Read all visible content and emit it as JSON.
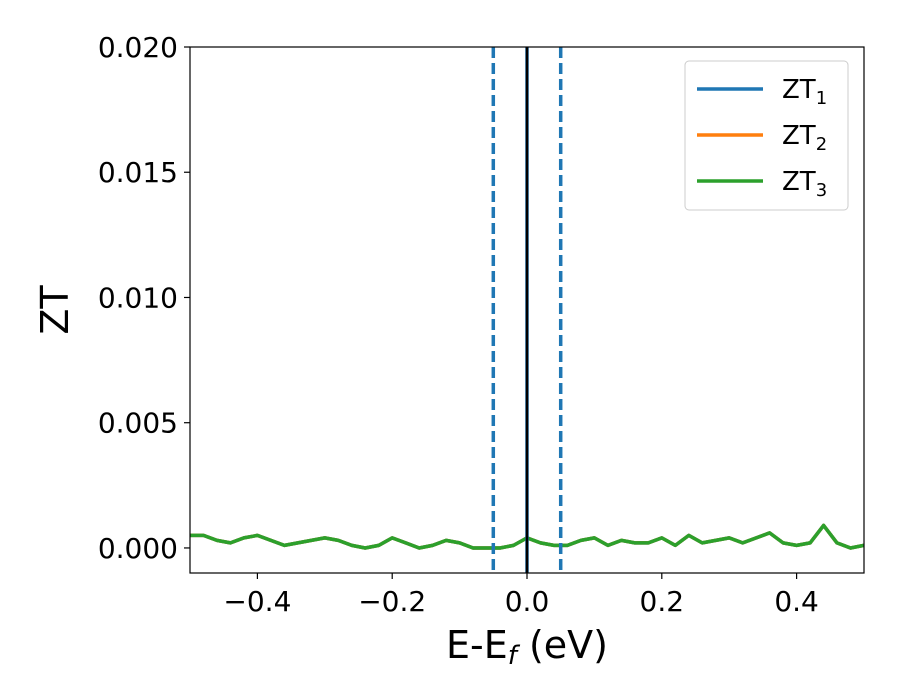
{
  "chart_data": {
    "type": "line",
    "title": "",
    "xlabel_main": "E-E",
    "xlabel_sub": "f",
    "xlabel_unit": " (eV)",
    "ylabel": "ZT",
    "xlim": [
      -0.5,
      0.5
    ],
    "ylim": [
      -0.001,
      0.02
    ],
    "xticks": [
      -0.4,
      -0.2,
      0.0,
      0.2,
      0.4
    ],
    "xtick_labels": [
      "−0.4",
      "−0.2",
      "0.0",
      "0.2",
      "0.4"
    ],
    "yticks": [
      0.0,
      0.005,
      0.01,
      0.015,
      0.02
    ],
    "ytick_labels": [
      "0.000",
      "0.005",
      "0.010",
      "0.015",
      "0.020"
    ],
    "grid": false,
    "legend_position": "top-right",
    "series": [
      {
        "name_main": "ZT",
        "name_sub": "1",
        "color": "#1f77b4",
        "x": [
          -0.5,
          -0.48,
          -0.46,
          -0.44,
          -0.42,
          -0.4,
          -0.38,
          -0.36,
          -0.34,
          -0.32,
          -0.3,
          -0.28,
          -0.26,
          -0.24,
          -0.22,
          -0.2,
          -0.18,
          -0.16,
          -0.14,
          -0.12,
          -0.1,
          -0.08,
          -0.06,
          -0.04,
          -0.02,
          0.0,
          0.02,
          0.04,
          0.06,
          0.08,
          0.1,
          0.12,
          0.14,
          0.16,
          0.18,
          0.2,
          0.22,
          0.24,
          0.26,
          0.28,
          0.3,
          0.32,
          0.34,
          0.36,
          0.38,
          0.4,
          0.42,
          0.44,
          0.46,
          0.48,
          0.5
        ],
        "y": [
          0.0005,
          0.0005,
          0.0003,
          0.0002,
          0.0004,
          0.0005,
          0.0003,
          0.0001,
          0.0002,
          0.0003,
          0.0004,
          0.0003,
          0.0001,
          0.0,
          0.0001,
          0.0004,
          0.0002,
          0.0,
          0.0001,
          0.0003,
          0.0002,
          0.0,
          0.0,
          0.0,
          0.0001,
          0.0004,
          0.0002,
          0.0001,
          0.0001,
          0.0003,
          0.0004,
          0.0001,
          0.0003,
          0.0002,
          0.0002,
          0.0004,
          0.0001,
          0.0005,
          0.0002,
          0.0003,
          0.0004,
          0.0002,
          0.0004,
          0.0006,
          0.0002,
          0.0001,
          0.0002,
          0.0009,
          0.0002,
          0.0,
          0.0001
        ]
      },
      {
        "name_main": "ZT",
        "name_sub": "2",
        "color": "#ff7f0e",
        "x": [
          -0.5,
          -0.48,
          -0.46,
          -0.44,
          -0.42,
          -0.4,
          -0.38,
          -0.36,
          -0.34,
          -0.32,
          -0.3,
          -0.28,
          -0.26,
          -0.24,
          -0.22,
          -0.2,
          -0.18,
          -0.16,
          -0.14,
          -0.12,
          -0.1,
          -0.08,
          -0.06,
          -0.04,
          -0.02,
          0.0,
          0.02,
          0.04,
          0.06,
          0.08,
          0.1,
          0.12,
          0.14,
          0.16,
          0.18,
          0.2,
          0.22,
          0.24,
          0.26,
          0.28,
          0.3,
          0.32,
          0.34,
          0.36,
          0.38,
          0.4,
          0.42,
          0.44,
          0.46,
          0.48,
          0.5
        ],
        "y": [
          0.0005,
          0.0005,
          0.0003,
          0.0002,
          0.0004,
          0.0005,
          0.0003,
          0.0001,
          0.0002,
          0.0003,
          0.0004,
          0.0003,
          0.0001,
          0.0,
          0.0001,
          0.0004,
          0.0002,
          0.0,
          0.0001,
          0.0003,
          0.0002,
          0.0,
          0.0,
          0.0,
          0.0001,
          0.0004,
          0.0002,
          0.0001,
          0.0001,
          0.0003,
          0.0004,
          0.0001,
          0.0003,
          0.0002,
          0.0002,
          0.0004,
          0.0001,
          0.0005,
          0.0002,
          0.0003,
          0.0004,
          0.0002,
          0.0004,
          0.0006,
          0.0002,
          0.0001,
          0.0002,
          0.0009,
          0.0002,
          0.0,
          0.0001
        ]
      },
      {
        "name_main": "ZT",
        "name_sub": "3",
        "color": "#2ca02c",
        "x": [
          -0.5,
          -0.48,
          -0.46,
          -0.44,
          -0.42,
          -0.4,
          -0.38,
          -0.36,
          -0.34,
          -0.32,
          -0.3,
          -0.28,
          -0.26,
          -0.24,
          -0.22,
          -0.2,
          -0.18,
          -0.16,
          -0.14,
          -0.12,
          -0.1,
          -0.08,
          -0.06,
          -0.04,
          -0.02,
          0.0,
          0.02,
          0.04,
          0.06,
          0.08,
          0.1,
          0.12,
          0.14,
          0.16,
          0.18,
          0.2,
          0.22,
          0.24,
          0.26,
          0.28,
          0.3,
          0.32,
          0.34,
          0.36,
          0.38,
          0.4,
          0.42,
          0.44,
          0.46,
          0.48,
          0.5
        ],
        "y": [
          0.0005,
          0.0005,
          0.0003,
          0.0002,
          0.0004,
          0.0005,
          0.0003,
          0.0001,
          0.0002,
          0.0003,
          0.0004,
          0.0003,
          0.0001,
          0.0,
          0.0001,
          0.0004,
          0.0002,
          0.0,
          0.0001,
          0.0003,
          0.0002,
          0.0,
          0.0,
          0.0,
          0.0001,
          0.0004,
          0.0002,
          0.0001,
          0.0001,
          0.0003,
          0.0004,
          0.0001,
          0.0003,
          0.0002,
          0.0002,
          0.0004,
          0.0001,
          0.0005,
          0.0002,
          0.0003,
          0.0004,
          0.0002,
          0.0004,
          0.0006,
          0.0002,
          0.0001,
          0.0002,
          0.0009,
          0.0002,
          0.0,
          0.0001
        ]
      }
    ],
    "vlines": [
      {
        "x": -0.05,
        "style": "dashed",
        "color": "#1f77b4"
      },
      {
        "x": 0.0,
        "style": "solid",
        "color": "#1f77b4"
      },
      {
        "x": 0.05,
        "style": "dashed",
        "color": "#1f77b4"
      },
      {
        "x": 0.0,
        "style": "solid",
        "color": "#000000"
      }
    ]
  }
}
